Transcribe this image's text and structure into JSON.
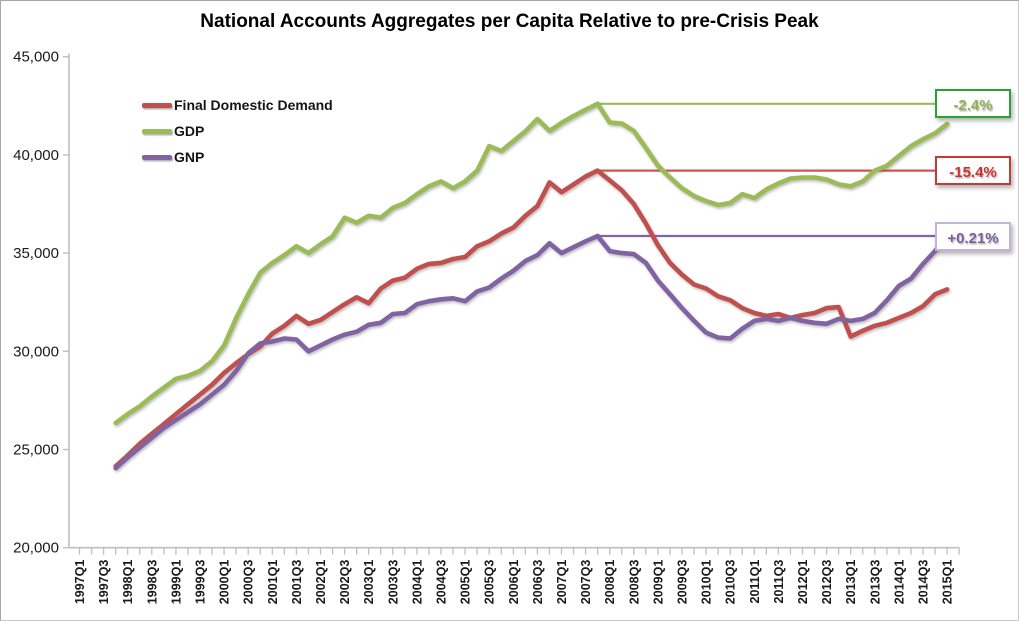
{
  "chart_data": {
    "type": "line",
    "title": "National Accounts Aggregates per Capita Relative to pre-Crisis Peak",
    "grid": false,
    "legend_position": "top-left-inside",
    "x_axis": {
      "tick_labels": [
        "1997Q1",
        "1997Q3",
        "1998Q1",
        "1998Q3",
        "1999Q1",
        "1999Q3",
        "2000Q1",
        "2000Q3",
        "2001Q1",
        "2001Q3",
        "2002Q1",
        "2002Q3",
        "2003Q1",
        "2003Q3",
        "2004Q1",
        "2004Q3",
        "2005Q1",
        "2005Q3",
        "2006Q1",
        "2006Q3",
        "2007Q1",
        "2007Q3",
        "2008Q1",
        "2008Q3",
        "2009Q1",
        "2009Q3",
        "2010Q1",
        "2010Q3",
        "2011Q1",
        "2011Q3",
        "2012Q1",
        "2012Q3",
        "2013Q1",
        "2013Q3",
        "2014Q1",
        "2014Q3",
        "2015Q1"
      ],
      "quarters_between_labels": 2,
      "minor_ticks": "quarterly",
      "series_start_quarter": "1997Q4",
      "series_start_offset_quarters": 3
    },
    "y_axis": {
      "min": 20000,
      "max": 45000,
      "step": 5000,
      "tick_labels": [
        "20,000",
        "25,000",
        "30,000",
        "35,000",
        "40,000",
        "45,000"
      ]
    },
    "series": [
      {
        "name": "Final Domestic Demand",
        "color": "#C0504D",
        "values": [
          24150,
          24700,
          25300,
          25800,
          26300,
          26800,
          27300,
          27800,
          28300,
          28900,
          29400,
          29850,
          30250,
          30900,
          31300,
          31800,
          31400,
          31600,
          32000,
          32400,
          32750,
          32450,
          33200,
          33600,
          33750,
          34200,
          34450,
          34500,
          34700,
          34800,
          35350,
          35600,
          36000,
          36300,
          36900,
          37400,
          38600,
          38100,
          38500,
          38900,
          39200,
          38700,
          38200,
          37500,
          36500,
          35400,
          34500,
          33900,
          33400,
          33200,
          32800,
          32600,
          32200,
          31950,
          31800,
          31900,
          31700,
          31850,
          31950,
          32200,
          32250,
          30750,
          31050,
          31300,
          31450,
          31700,
          31950,
          32300,
          32900,
          33150
        ]
      },
      {
        "name": "GDP",
        "color": "#9BBB59",
        "values": [
          26350,
          26800,
          27200,
          27700,
          28150,
          28600,
          28750,
          29000,
          29500,
          30300,
          31700,
          32900,
          34000,
          34500,
          34900,
          35350,
          35000,
          35450,
          35850,
          36800,
          36550,
          36900,
          36800,
          37300,
          37550,
          38000,
          38400,
          38650,
          38300,
          38650,
          39200,
          40450,
          40200,
          40700,
          41200,
          41830,
          41220,
          41630,
          41980,
          42300,
          42600,
          41650,
          41600,
          41220,
          40350,
          39450,
          38850,
          38300,
          37900,
          37650,
          37450,
          37550,
          38000,
          37800,
          38250,
          38550,
          38800,
          38850,
          38850,
          38750,
          38500,
          38400,
          38650,
          39200,
          39450,
          39950,
          40450,
          40800,
          41100,
          41580
        ]
      },
      {
        "name": "GNP",
        "color": "#8064A2",
        "values": [
          24050,
          24600,
          25100,
          25600,
          26100,
          26500,
          26900,
          27300,
          27800,
          28300,
          29000,
          29900,
          30400,
          30500,
          30650,
          30600,
          30000,
          30300,
          30600,
          30850,
          31000,
          31350,
          31450,
          31900,
          31950,
          32400,
          32550,
          32650,
          32700,
          32550,
          33050,
          33250,
          33700,
          34100,
          34600,
          34900,
          35500,
          35000,
          35300,
          35600,
          35870,
          35100,
          35000,
          34950,
          34500,
          33600,
          32900,
          32200,
          31550,
          30950,
          30700,
          30650,
          31150,
          31550,
          31650,
          31550,
          31700,
          31550,
          31450,
          31400,
          31650,
          31550,
          31650,
          31960,
          32600,
          33330,
          33700,
          34450,
          35110,
          35945
        ]
      }
    ],
    "peak_reference": {
      "from_quarter": "2007Q4",
      "from_offset_quarters": 43
    },
    "annotations": [
      {
        "series": "GDP",
        "label": "-2.4%",
        "line_value": 42600,
        "line_color": "#9BBB59",
        "box_border_color": "#2DA12D",
        "text_color": "#93B254"
      },
      {
        "series": "Final Domestic Demand",
        "label": "-15.4%",
        "line_value": 39200,
        "line_color": "#D5534E",
        "box_border_color": "#C43B35",
        "text_color": "#CE322B"
      },
      {
        "series": "GNP",
        "label": "+0.21%",
        "line_value": 35870,
        "line_color": "#8064A2",
        "box_border_color": "#C3B3D8",
        "text_color": "#7C5EA0"
      }
    ]
  }
}
